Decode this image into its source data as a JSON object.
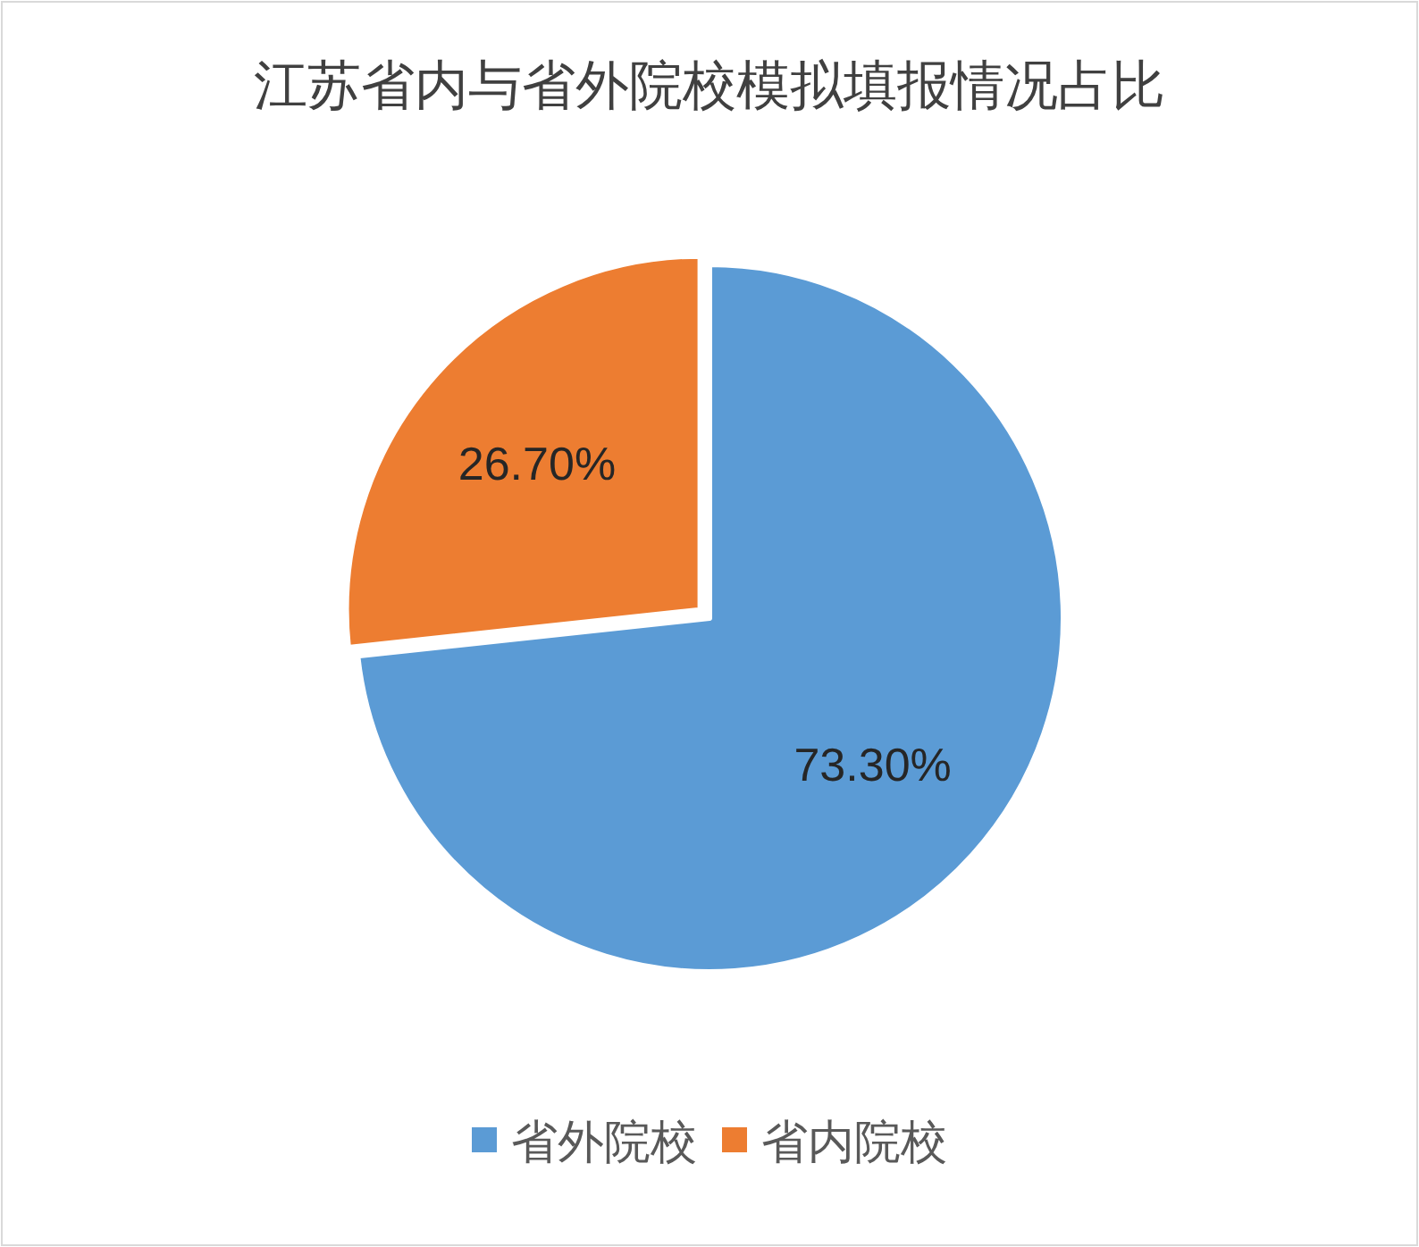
{
  "chart_data": {
    "type": "pie",
    "title": "江苏省内与省外院校模拟填报情况占比",
    "categories": [
      "省外院校",
      "省内院校"
    ],
    "values": [
      73.3,
      26.7
    ],
    "colors": [
      "#5b9bd5",
      "#ed7d31"
    ],
    "value_labels": [
      "73.30%",
      "26.70%"
    ],
    "legend": "bottom"
  }
}
